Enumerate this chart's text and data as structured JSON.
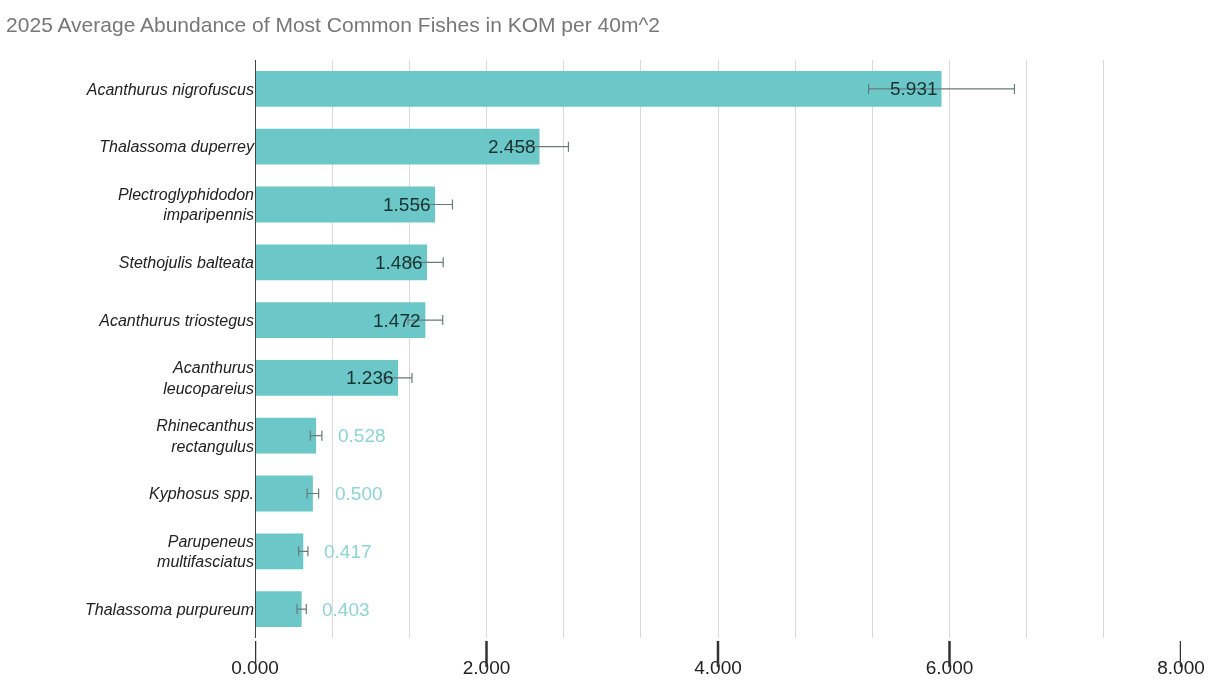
{
  "chart_data": {
    "type": "bar",
    "orientation": "horizontal",
    "title": "2025 Average Abundance of Most Common Fishes in KOM per 40m^2",
    "categories": [
      "Acanthurus nigrofuscus",
      "Thalassoma duperrey",
      "Plectroglyphidodon imparipennis",
      "Stethojulis balteata",
      "Acanthurus triostegus",
      "Acanthurus leucopareius",
      "Rhinecanthus rectangulus",
      "Kyphosus spp.",
      "Parupeneus multifasciatus",
      "Thalassoma purpureum"
    ],
    "values": [
      5.931,
      2.458,
      1.556,
      1.486,
      1.472,
      1.236,
      0.528,
      0.5,
      0.417,
      0.403
    ],
    "errors": [
      0.63,
      0.25,
      0.15,
      0.14,
      0.15,
      0.12,
      0.05,
      0.05,
      0.04,
      0.04
    ],
    "color": "#6cc8c8",
    "value_labels": [
      "5.931",
      "2.458",
      "1.556",
      "1.486",
      "1.472",
      "1.236",
      "0.528",
      "0.500",
      "0.417",
      "0.403"
    ],
    "xlim": [
      0,
      8
    ],
    "xticks": [
      {
        "value": 0,
        "label": "0.000"
      },
      {
        "value": 0.667,
        "label": null
      },
      {
        "value": 1.333,
        "label": null
      },
      {
        "value": 2,
        "label": "2.000"
      },
      {
        "value": 2.667,
        "label": null
      },
      {
        "value": 3.333,
        "label": null
      },
      {
        "value": 4,
        "label": "4.000"
      },
      {
        "value": 4.667,
        "label": null
      },
      {
        "value": 5.333,
        "label": null
      },
      {
        "value": 6,
        "label": "6.000"
      },
      {
        "value": 6.667,
        "label": null
      },
      {
        "value": 7.333,
        "label": null
      },
      {
        "value": 8,
        "label": "8.000"
      }
    ],
    "grid": "x"
  }
}
